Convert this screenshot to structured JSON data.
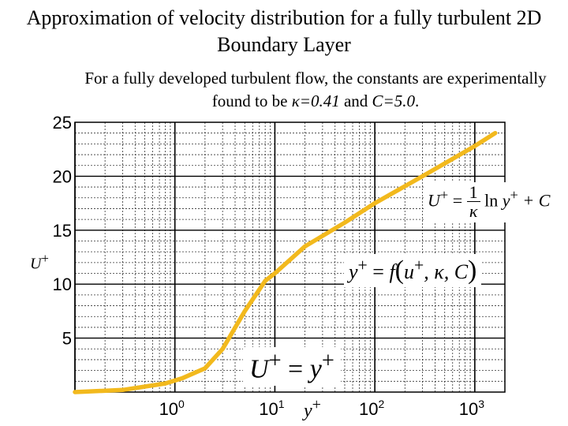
{
  "slide": {
    "title": "Approximation of velocity distribution for a fully turbulent 2D Boundary Layer",
    "subtitle_pre": "For a fully developed turbulent flow, the constants are experimentally found to be ",
    "kappa_expr": "κ=0.41",
    "subtitle_and": " and ",
    "c_expr": "C=5.0",
    "subtitle_end": "."
  },
  "equations": {
    "log_law": {
      "lhs": "U",
      "sup": "+",
      "eq": " = ",
      "num": "1",
      "den": "κ",
      "ln": "ln ",
      "y": "y",
      "plus_c": " + C"
    },
    "function": {
      "y": "y",
      "sup": "+",
      "eq": " = ",
      "f": "f",
      "open": "(",
      "u": "u",
      "rest": ", κ, C",
      "close": ")"
    },
    "linear": {
      "lhs": "U",
      "sup": "+",
      "eq": " = ",
      "rhs": "y"
    }
  },
  "axis_labels": {
    "y_var": "U",
    "y_sup": "+",
    "x_var": "y",
    "x_sup": "+"
  },
  "chart_data": {
    "type": "line",
    "title": "",
    "xlabel": "y+",
    "ylabel": "U+",
    "x_scale": "log",
    "xlim": [
      0.1,
      2000
    ],
    "ylim": [
      0,
      25
    ],
    "x_ticks": [
      {
        "value": 1,
        "label": "10",
        "exp": "0"
      },
      {
        "value": 10,
        "label": "10",
        "exp": "1"
      },
      {
        "value": 100,
        "label": "10",
        "exp": "2"
      },
      {
        "value": 1000,
        "label": "10",
        "exp": "3"
      }
    ],
    "y_ticks": [
      5,
      10,
      15,
      20,
      25
    ],
    "grid": true,
    "series": [
      {
        "color": "#f2b91d",
        "points": [
          [
            0.1,
            0
          ],
          [
            0.3,
            0.2
          ],
          [
            0.8,
            0.8
          ],
          [
            1.2,
            1.3
          ],
          [
            2,
            2.2
          ],
          [
            3,
            4.0
          ],
          [
            5,
            7.5
          ],
          [
            8,
            10.3
          ],
          [
            10,
            11.0
          ],
          [
            20,
            13.5
          ],
          [
            50,
            15.7
          ],
          [
            100,
            17.5
          ],
          [
            300,
            20.0
          ],
          [
            1000,
            22.8
          ],
          [
            1600,
            24.0
          ]
        ]
      }
    ]
  },
  "colors": {
    "curve": "#f2b91d",
    "grid": "#333333",
    "axis": "#000000"
  }
}
